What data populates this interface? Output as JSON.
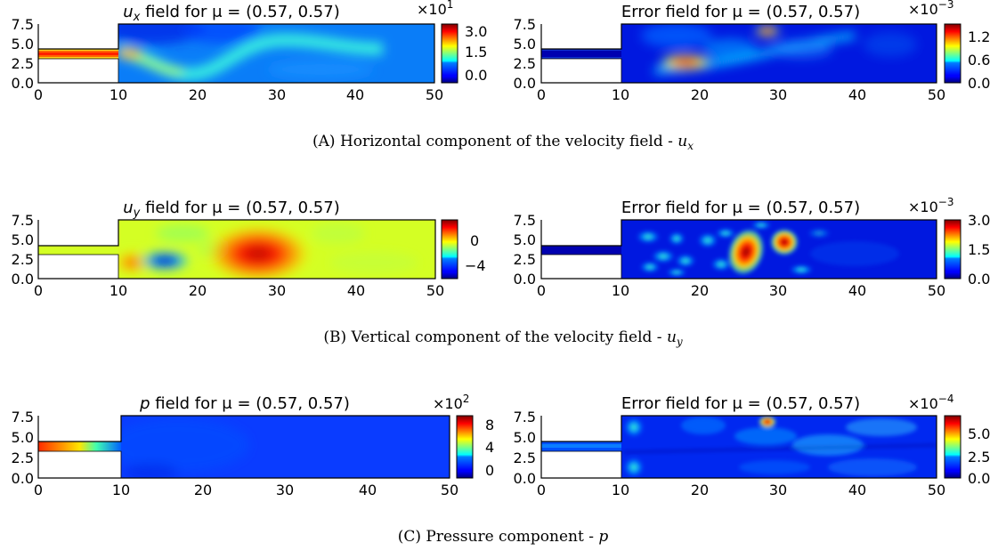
{
  "figure": {
    "captions": [
      {
        "label": "(A)",
        "text": "Horizontal component of the velocity field - ",
        "var": "u",
        "sub": "x"
      },
      {
        "label": "(B)",
        "text": "Vertical component of the velocity field - ",
        "var": "u",
        "sub": "y"
      },
      {
        "label": "(C)",
        "text": "Pressure component - ",
        "var": "p",
        "sub": ""
      }
    ]
  },
  "colormap": "jet",
  "chart_data": [
    {
      "type": "heatmap",
      "title": "u_x field for μ = (0.57, 0.57)",
      "title_var": "u",
      "title_sub": "x",
      "title_rest": " field for μ = (0.57, 0.57)",
      "xlim": [
        0,
        50
      ],
      "ylim": [
        0,
        7.5
      ],
      "x_ticks": [
        "0",
        "10",
        "20",
        "30",
        "40",
        "50"
      ],
      "y_ticks": [
        "0.0",
        "2.5",
        "5.0",
        "7.5"
      ],
      "colorbar": {
        "range": [
          -0.3,
          3.3
        ],
        "ticks": [
          {
            "value": 3.0,
            "label": "3.0"
          },
          {
            "value": 1.5,
            "label": "1.5"
          },
          {
            "value": 0.0,
            "label": "0.0"
          }
        ],
        "scale_label": "×10",
        "scale_exp": "1"
      }
    },
    {
      "type": "heatmap",
      "title": "Error field for μ = (0.57, 0.57)",
      "title_var": "",
      "title_sub": "",
      "title_rest": "Error field for μ = (0.57, 0.57)",
      "xlim": [
        0,
        50
      ],
      "ylim": [
        0,
        7.5
      ],
      "x_ticks": [
        "0",
        "10",
        "20",
        "30",
        "40",
        "50"
      ],
      "y_ticks": [
        "0.0",
        "2.5",
        "5.0",
        "7.5"
      ],
      "colorbar": {
        "range": [
          0,
          1.4
        ],
        "ticks": [
          {
            "value": 1.2,
            "label": "1.2"
          },
          {
            "value": 0.6,
            "label": "0.6"
          },
          {
            "value": 0.0,
            "label": "0.0"
          }
        ],
        "scale_label": "×10",
        "scale_exp": "−3"
      }
    },
    {
      "type": "heatmap",
      "title": "u_y field for μ = (0.57, 0.57)",
      "title_var": "u",
      "title_sub": "y",
      "title_rest": " field for μ = (0.57, 0.57)",
      "xlim": [
        0,
        50
      ],
      "ylim": [
        0,
        7.5
      ],
      "x_ticks": [
        "0",
        "10",
        "20",
        "30",
        "40",
        "50"
      ],
      "y_ticks": [
        "0.0",
        "2.5",
        "5.0",
        "7.5"
      ],
      "colorbar": {
        "range": [
          -6,
          3
        ],
        "ticks": [
          {
            "value": 0,
            "label": "0"
          },
          {
            "value": -4,
            "label": "−4"
          }
        ],
        "scale_label": "",
        "scale_exp": ""
      }
    },
    {
      "type": "heatmap",
      "title": "Error field for μ = (0.57, 0.57)",
      "title_var": "",
      "title_sub": "",
      "title_rest": "Error field for μ = (0.57, 0.57)",
      "xlim": [
        0,
        50
      ],
      "ylim": [
        0,
        7.5
      ],
      "x_ticks": [
        "0",
        "10",
        "20",
        "30",
        "40",
        "50"
      ],
      "y_ticks": [
        "0.0",
        "2.5",
        "5.0",
        "7.5"
      ],
      "colorbar": {
        "range": [
          0,
          3.0
        ],
        "ticks": [
          {
            "value": 3.0,
            "label": "3.0"
          },
          {
            "value": 1.5,
            "label": "1.5"
          },
          {
            "value": 0.0,
            "label": "0.0"
          }
        ],
        "scale_label": "×10",
        "scale_exp": "−3"
      }
    },
    {
      "type": "heatmap",
      "title": "p field for μ = (0.57, 0.57)",
      "title_var": "p",
      "title_sub": "",
      "title_rest": " field for μ = (0.57, 0.57)",
      "xlim": [
        0,
        50
      ],
      "ylim": [
        0,
        7.5
      ],
      "x_ticks": [
        "0",
        "10",
        "20",
        "30",
        "40",
        "50"
      ],
      "y_ticks": [
        "0.0",
        "2.5",
        "5.0",
        "7.5"
      ],
      "colorbar": {
        "range": [
          -1,
          10
        ],
        "ticks": [
          {
            "value": 8,
            "label": "8"
          },
          {
            "value": 4,
            "label": "4"
          },
          {
            "value": 0,
            "label": "0"
          }
        ],
        "scale_label": "×10",
        "scale_exp": "2"
      }
    },
    {
      "type": "heatmap",
      "title": "Error field for μ = (0.57, 0.57)",
      "title_var": "",
      "title_sub": "",
      "title_rest": "Error field for μ = (0.57, 0.57)",
      "xlim": [
        0,
        50
      ],
      "ylim": [
        0,
        7.5
      ],
      "x_ticks": [
        "0",
        "10",
        "20",
        "30",
        "40",
        "50"
      ],
      "y_ticks": [
        "0.0",
        "2.5",
        "5.0",
        "7.5"
      ],
      "colorbar": {
        "range": [
          0,
          6.6
        ],
        "ticks": [
          {
            "value": 5.0,
            "label": "5.0"
          },
          {
            "value": 2.5,
            "label": "2.5"
          },
          {
            "value": 0.0,
            "label": "0.0"
          }
        ],
        "scale_label": "×10",
        "scale_exp": "−4"
      }
    }
  ]
}
